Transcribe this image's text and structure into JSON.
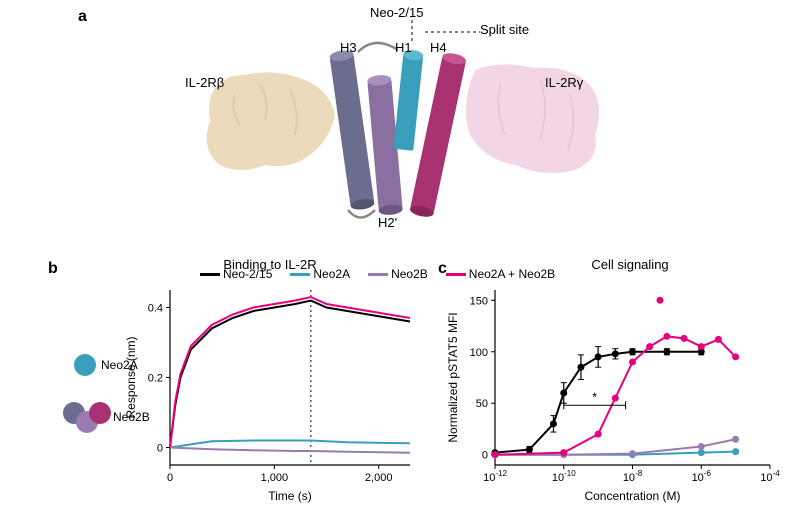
{
  "panel_labels": {
    "a": "a",
    "b": "b",
    "c": "c"
  },
  "panel_a": {
    "title": "Neo-2/15",
    "split_site": "Split site",
    "helix_labels": {
      "h1": "H1",
      "h2": "H2'",
      "h3": "H3",
      "h4": "H4"
    },
    "left_surface_label": "IL-2Rβ",
    "right_surface_label": "IL-2Rγ",
    "colors": {
      "left_surface": "#e8d4b0",
      "right_surface": "#f0cfe0",
      "h1": "#3a9fba",
      "h2": "#8a6fa0",
      "h3": "#6b6d8f",
      "h4": "#a83272"
    }
  },
  "panel_b": {
    "title": "Binding to IL-2R",
    "xlabel": "Time (s)",
    "ylabel": "Response (nm)",
    "xlim": [
      0,
      2300
    ],
    "xtick_step": 1000,
    "ylim": [
      -0.05,
      0.45
    ],
    "yticks": [
      0,
      0.2,
      0.4
    ],
    "vline_x": 1350,
    "series": [
      {
        "name": "Neo-2/15",
        "color": "#000000",
        "x": [
          0,
          50,
          100,
          200,
          400,
          600,
          800,
          1000,
          1200,
          1350,
          1500,
          1700,
          1900,
          2100,
          2300
        ],
        "y": [
          0,
          0.12,
          0.2,
          0.28,
          0.34,
          0.37,
          0.39,
          0.4,
          0.41,
          0.42,
          0.4,
          0.39,
          0.38,
          0.37,
          0.36
        ]
      },
      {
        "name": "Neo2A",
        "color": "#3a9fba",
        "x": [
          0,
          400,
          800,
          1200,
          1350,
          1700,
          2300
        ],
        "y": [
          0,
          0.018,
          0.02,
          0.02,
          0.02,
          0.015,
          0.012
        ]
      },
      {
        "name": "Neo2B",
        "color": "#9a7bb0",
        "x": [
          0,
          400,
          800,
          1200,
          1350,
          1700,
          2300
        ],
        "y": [
          0,
          -0.005,
          -0.008,
          -0.01,
          -0.01,
          -0.012,
          -0.015
        ]
      },
      {
        "name": "Neo2A + Neo2B",
        "color": "#e6007e",
        "x": [
          0,
          50,
          100,
          200,
          400,
          600,
          800,
          1000,
          1200,
          1350,
          1500,
          1700,
          1900,
          2100,
          2300
        ],
        "y": [
          0,
          0.13,
          0.21,
          0.29,
          0.35,
          0.38,
          0.4,
          0.41,
          0.42,
          0.43,
          0.41,
          0.4,
          0.39,
          0.38,
          0.37
        ]
      }
    ],
    "legend_circles": {
      "neo2a": {
        "label": "Neo2A",
        "color": "#3a9fba"
      },
      "neo2b": {
        "label": "Neo2B",
        "colors": [
          "#6b6d8f",
          "#9a7bb0",
          "#a83272"
        ]
      }
    }
  },
  "panel_c": {
    "title": "Cell signaling",
    "xlabel": "Concentration (M)",
    "ylabel": "Normalized pSTAT5 MFI",
    "xlim_log": [
      -12,
      -4
    ],
    "xtick_exp": [
      -12,
      -10,
      -8,
      -6,
      -4
    ],
    "ylim": [
      -10,
      160
    ],
    "yticks": [
      0,
      50,
      100,
      150
    ],
    "star_label": "*",
    "series": [
      {
        "name": "Neo-2/15",
        "color": "#000000",
        "x_log": [
          -12,
          -11,
          -10.3,
          -10,
          -9.5,
          -9,
          -8.5,
          -8,
          -7,
          -6
        ],
        "y": [
          2,
          5,
          30,
          60,
          85,
          95,
          98,
          100,
          100,
          100
        ],
        "err": [
          0,
          3,
          8,
          10,
          12,
          10,
          5,
          3,
          3,
          3
        ]
      },
      {
        "name": "Neo2A",
        "color": "#3a9fba",
        "x_log": [
          -12,
          -10,
          -8,
          -6,
          -5
        ],
        "y": [
          0,
          0,
          0,
          2,
          3
        ],
        "err": [
          0,
          0,
          0,
          0,
          0
        ]
      },
      {
        "name": "Neo2B",
        "color": "#9a7bb0",
        "x_log": [
          -12,
          -10,
          -8,
          -6,
          -5
        ],
        "y": [
          0,
          0,
          1,
          8,
          15
        ],
        "err": [
          0,
          0,
          0,
          0,
          0
        ]
      },
      {
        "name": "Neo2A + Neo2B",
        "color": "#e6007e",
        "x_log": [
          -12,
          -10,
          -9,
          -8.5,
          -8,
          -7.5,
          -7,
          -6.5,
          -6,
          -5.5,
          -5
        ],
        "y": [
          0,
          2,
          20,
          55,
          90,
          105,
          115,
          113,
          105,
          112,
          95
        ],
        "err": [
          0,
          0,
          0,
          0,
          0,
          0,
          0,
          0,
          0,
          0,
          0
        ],
        "scatter_extra": {
          "x_log": -7.2,
          "y": 150
        }
      }
    ],
    "bracket": {
      "x1_log": -10,
      "x2_log": -8.2,
      "y": 48
    }
  },
  "legend_row": [
    {
      "name": "Neo-2/15",
      "color": "#000000"
    },
    {
      "name": "Neo2A",
      "color": "#3a9fba"
    },
    {
      "name": "Neo2B",
      "color": "#9a7bb0"
    },
    {
      "name": "Neo2A + Neo2B",
      "color": "#e6007e"
    }
  ]
}
